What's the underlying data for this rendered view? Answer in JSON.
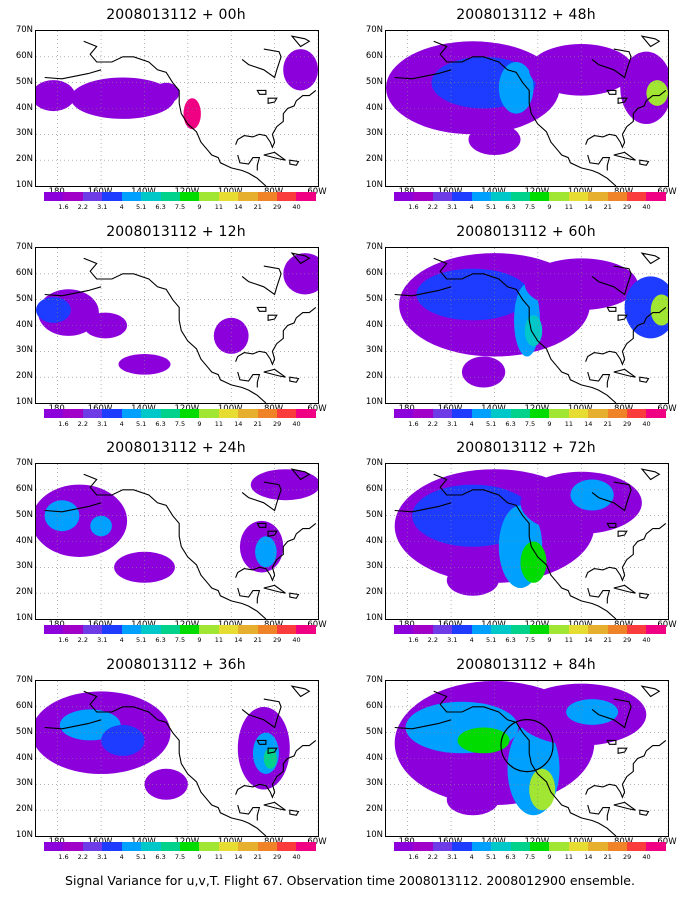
{
  "figure": {
    "caption": "Signal Variance for u,v,T. Flight 67. Observation time 2008013112. 2008012900 ensemble.",
    "panel_titles": [
      "2008013112 + 00h",
      "2008013112 + 12h",
      "2008013112 + 24h",
      "2008013112 + 36h",
      "2008013112 + 48h",
      "2008013112 + 60h",
      "2008013112 + 72h",
      "2008013112 + 84h"
    ],
    "lat_ticks": [
      "70N",
      "60N",
      "50N",
      "40N",
      "30N",
      "20N",
      "10N"
    ],
    "lon_ticks": [
      "180",
      "160W",
      "140W",
      "120W",
      "100W",
      "80W",
      "60W"
    ],
    "colorbar": {
      "labels": [
        "1.6",
        "2.2",
        "3.1",
        "4",
        "5.1",
        "6.3",
        "7.5",
        "9",
        "11",
        "14",
        "21",
        "29",
        "40"
      ],
      "colors": [
        "#8c00dc",
        "#a000c8",
        "#6e3ce6",
        "#1e3cff",
        "#00a0ff",
        "#00c8c8",
        "#00d28c",
        "#00dc00",
        "#a0e632",
        "#e6dc32",
        "#e6af2d",
        "#f08228",
        "#fa3c3c",
        "#f00082"
      ]
    },
    "map": {
      "projection": "lat-lon",
      "lon_range": [
        -190,
        -60
      ],
      "lat_range": [
        10,
        70
      ],
      "grid": "dotted",
      "contour_variable": "signal variance",
      "features": {
        "panel_84h": "circled region near 45N 125W"
      }
    }
  }
}
